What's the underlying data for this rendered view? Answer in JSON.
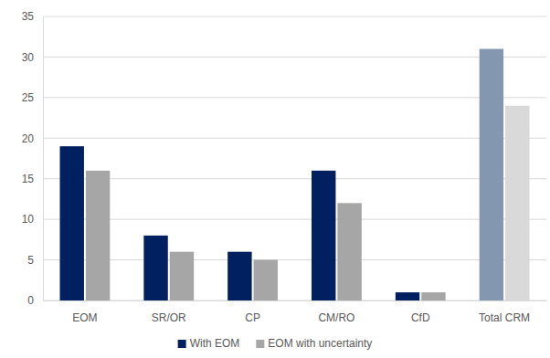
{
  "chart_data": {
    "type": "bar",
    "categories": [
      "EOM",
      "SR/OR",
      "CP",
      "CM/RO",
      "CfD",
      "Total CRM"
    ],
    "series": [
      {
        "name": "With EOM",
        "color": "#002060",
        "values": [
          19,
          8,
          6,
          16,
          1,
          31
        ],
        "colors": [
          "#002060",
          "#002060",
          "#002060",
          "#002060",
          "#002060",
          "#8497b0"
        ]
      },
      {
        "name": "EOM with uncertainty",
        "color": "#a6a6a6",
        "values": [
          16,
          6,
          5,
          12,
          1,
          24
        ],
        "colors": [
          "#a6a6a6",
          "#a6a6a6",
          "#a6a6a6",
          "#a6a6a6",
          "#a6a6a6",
          "#d9d9d9"
        ]
      }
    ],
    "ylim": [
      0,
      35
    ],
    "yticks": [
      0,
      5,
      10,
      15,
      20,
      25,
      30,
      35
    ],
    "grid": true,
    "legend": "bottom"
  }
}
